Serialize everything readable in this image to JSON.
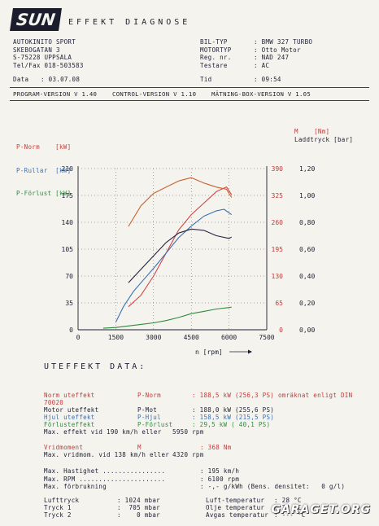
{
  "header": {
    "logo": "SUN",
    "title": "EFFEKT DIAGNOSE",
    "shop": [
      "AUTOKINITO SPORT",
      "SKEBOGATAN 3",
      "S-75228 UPPSALA",
      "Tel/Fax 018-503583"
    ],
    "vehicle_labels": [
      "BIL-TYP",
      "MOTORTYP",
      "Reg. nr.",
      "Testare"
    ],
    "vehicle_values": [
      ": BMW 327 TURBO",
      ": Otto Motor",
      ": NAD 247",
      ": AC"
    ],
    "date_label": "Data",
    "date_value": ": 03.07.08",
    "time_label": "Tid",
    "time_value": ": 09:54",
    "versions": "PROGRAM-VERSION V 1.40    CONTROL-VERSION V 1.10    MÄTNING-BOX-VERSION V 1.05"
  },
  "legend": {
    "left": [
      "P-Norm    [kW]",
      "P-Rullar  [kW]",
      "P-Förlust [kW]"
    ],
    "right_m": "M    [Nm]",
    "right_boost": "Laddtryck [bar]"
  },
  "chart_data": {
    "type": "line",
    "xlabel": "n [rpm]",
    "xlim": [
      0,
      7500
    ],
    "x_ticks": [
      "0",
      "1500",
      "3000",
      "4500",
      "6000",
      "7500"
    ],
    "y_left_ticks": [
      "0",
      "35",
      "70",
      "105",
      "140",
      "175",
      "210"
    ],
    "y_left_lim": [
      0,
      210
    ],
    "y_mid_ticks": [
      "0",
      "65",
      "130",
      "195",
      "260",
      "325",
      "390"
    ],
    "y_mid_lim": [
      0,
      390
    ],
    "y_right_ticks": [
      "0,00",
      "0,20",
      "0,40",
      "0,60",
      "0,80",
      "1,00",
      "1,20"
    ],
    "y_right_lim": [
      0,
      1.2
    ],
    "grid": true,
    "series": [
      {
        "name": "P-Norm",
        "color": "#d04848",
        "axis": "left",
        "x": [
          2000,
          2500,
          3000,
          3500,
          4000,
          4500,
          5000,
          5500,
          5900,
          6100
        ],
        "y": [
          30,
          45,
          70,
          100,
          130,
          150,
          165,
          180,
          186,
          176
        ]
      },
      {
        "name": "P-Rullar",
        "color": "#3a6fb2",
        "axis": "left",
        "x": [
          1500,
          1800,
          2200,
          2600,
          3000,
          3500,
          4000,
          4500,
          5000,
          5500,
          5800,
          6100
        ],
        "y": [
          10,
          30,
          50,
          65,
          80,
          100,
          120,
          135,
          148,
          155,
          157,
          150
        ]
      },
      {
        "name": "P-Förlust",
        "color": "#2f8a3e",
        "axis": "left",
        "x": [
          1000,
          1500,
          2000,
          2500,
          3000,
          3500,
          4000,
          4500,
          5000,
          5500,
          6000,
          6100
        ],
        "y": [
          2,
          3,
          5,
          7,
          9,
          12,
          16,
          21,
          24,
          27,
          29,
          29.5
        ]
      },
      {
        "name": "M",
        "color": "#c8622e",
        "axis": "mid",
        "x": [
          2000,
          2500,
          3000,
          3500,
          4000,
          4500,
          5000,
          5500,
          5900,
          6100
        ],
        "y": [
          250,
          300,
          330,
          345,
          360,
          368,
          355,
          345,
          340,
          320
        ]
      },
      {
        "name": "Laddtryck",
        "color": "#2a2240",
        "axis": "right",
        "x": [
          2000,
          2500,
          3000,
          3500,
          4000,
          4500,
          5000,
          5500,
          6000,
          6100
        ],
        "y": [
          0.35,
          0.45,
          0.55,
          0.65,
          0.72,
          0.75,
          0.74,
          0.7,
          0.68,
          0.69
        ]
      }
    ]
  },
  "uteffekt": {
    "title": "UTEFFEKT DATA:",
    "rows": [
      {
        "label": "Norm uteffekt",
        "code": "P-Norm",
        "value": ": 188,5 kW (256,3 PS) omräknat enligt DIN",
        "color": "#c43a3a"
      },
      {
        "label": "70020",
        "code": "",
        "value": "",
        "color": "#c43a3a"
      },
      {
        "label": "Motor uteffekt",
        "code": "P-Mot",
        "value": ": 188,0 kW (255,6 PS)",
        "color": "#1d1f33"
      },
      {
        "label": "Hjul uteffekt",
        "code": "P-Hjul",
        "value": ": 158,5 kW (215,5 PS)",
        "color": "#3a6fb2"
      },
      {
        "label": "Förlusteffekt",
        "code": "P-Förlust",
        "value": ": 29,5 kW ( 40,1 PS)",
        "color": "#2f8a3e"
      },
      {
        "label": "Max. effekt vid 190 km/h eller",
        "code": "",
        "value": "5950 rpm",
        "color": "#1d1f33"
      }
    ]
  },
  "vrid": {
    "rows": [
      {
        "label": "Vridmoment",
        "code": "M",
        "value": ": 368 Nm",
        "color": "#c43a3a"
      },
      {
        "label": "Max. vridmom. vid 138 km/h eller",
        "code": "",
        "value": "4320 rpm",
        "color": "#1d1f33"
      }
    ]
  },
  "maxvals": [
    {
      "label": "Max. Hastighet ................",
      "value": ": 195 km/h"
    },
    {
      "label": "Max. RPM ......................",
      "value": ": 6100 rpm"
    },
    {
      "label": "Max. förbrukning",
      "value": ": -,- g/kWh (Bens. densitet:   0 g/l)"
    }
  ],
  "environment": {
    "left": [
      {
        "label": "Lufttryck",
        "value": ": 1024 mbar"
      },
      {
        "label": "Tryck 1",
        "value": ":  705 mbar"
      },
      {
        "label": "Tryck 2",
        "value": ":    0 mbar"
      }
    ],
    "right": [
      {
        "label": "Luft-temperatur",
        "value": ": 28 °C"
      },
      {
        "label": "Olje temperatur",
        "value": ": 30 °C"
      },
      {
        "label": "Avgas temperatur",
        "value": ": --- °C"
      }
    ]
  },
  "watermark": "GARAGET.ORG"
}
